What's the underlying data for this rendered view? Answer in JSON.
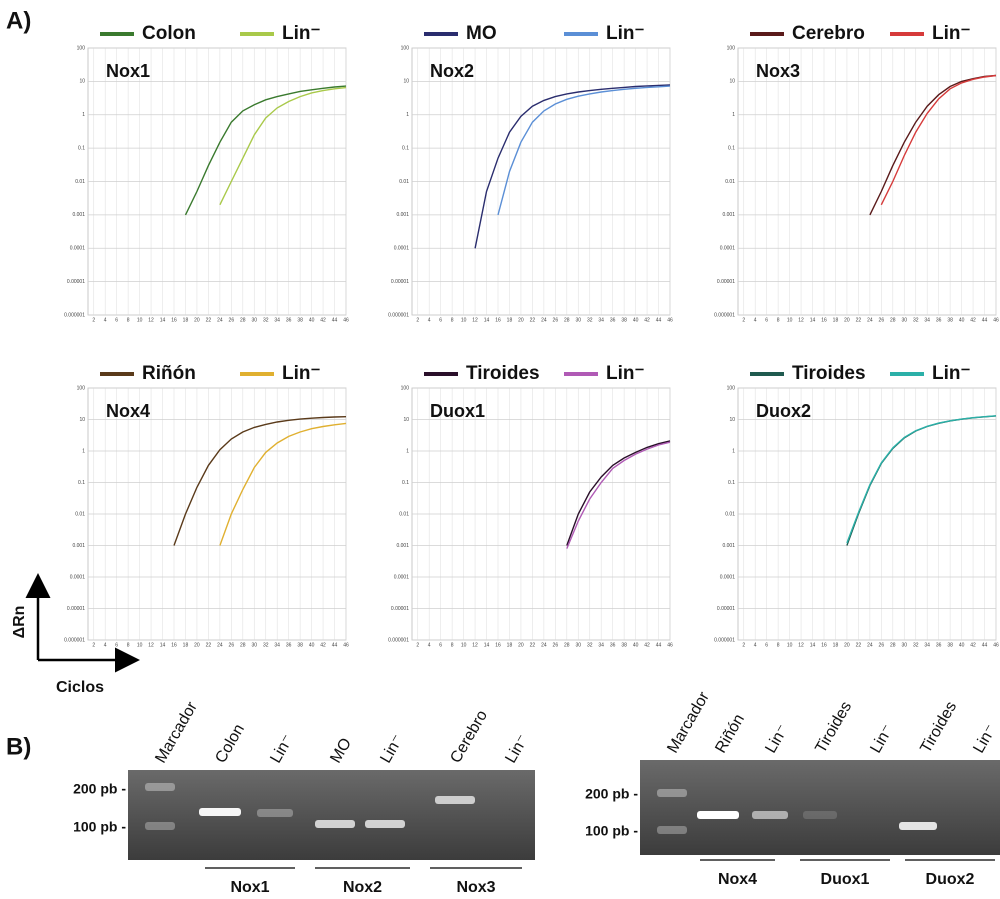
{
  "figure": {
    "panel_a": "A)",
    "panel_b": "B)",
    "y_axis": "ΔRn",
    "x_axis": "Ciclos"
  },
  "chart_data": [
    {
      "type": "line",
      "title": "Nox1",
      "yscale": "log",
      "grid": true,
      "x": [
        2,
        4,
        6,
        8,
        10,
        12,
        14,
        16,
        18,
        20,
        22,
        24,
        26,
        28,
        30,
        32,
        34,
        36,
        38,
        40,
        42,
        44,
        46
      ],
      "xlim": [
        1,
        46
      ],
      "xticks": [
        2,
        4,
        6,
        8,
        10,
        12,
        14,
        16,
        18,
        20,
        22,
        24,
        26,
        28,
        30,
        32,
        34,
        36,
        38,
        40,
        42,
        44,
        46
      ],
      "ylim": [
        1e-06,
        100
      ],
      "yticks": [
        1e-06,
        1e-05,
        0.0001,
        0.001,
        0.01,
        0.1,
        1,
        10,
        100
      ],
      "series": [
        {
          "name": "Colon",
          "color": "#3a7a2e",
          "values": [
            null,
            null,
            null,
            null,
            null,
            null,
            null,
            null,
            0.001,
            0.005,
            0.03,
            0.15,
            0.6,
            1.3,
            2,
            2.8,
            3.5,
            4.2,
            5,
            5.6,
            6.2,
            6.8,
            7.2
          ]
        },
        {
          "name": "Lin⁻",
          "color": "#a9c94a",
          "values": [
            null,
            null,
            null,
            null,
            null,
            null,
            null,
            null,
            null,
            null,
            null,
            0.002,
            0.01,
            0.05,
            0.25,
            0.8,
            1.6,
            2.5,
            3.5,
            4.5,
            5.3,
            6,
            6.5
          ]
        }
      ]
    },
    {
      "type": "line",
      "title": "Nox2",
      "yscale": "log",
      "grid": true,
      "x": [
        2,
        4,
        6,
        8,
        10,
        12,
        14,
        16,
        18,
        20,
        22,
        24,
        26,
        28,
        30,
        32,
        34,
        36,
        38,
        40,
        42,
        44,
        46
      ],
      "xlim": [
        1,
        46
      ],
      "xticks": [
        2,
        4,
        6,
        8,
        10,
        12,
        14,
        16,
        18,
        20,
        22,
        24,
        26,
        28,
        30,
        32,
        34,
        36,
        38,
        40,
        42,
        44,
        46
      ],
      "ylim": [
        1e-06,
        100
      ],
      "yticks": [
        1e-06,
        1e-05,
        0.0001,
        0.001,
        0.01,
        0.1,
        1,
        10,
        100
      ],
      "series": [
        {
          "name": "MO",
          "color": "#2a2d6e",
          "values": [
            null,
            null,
            null,
            null,
            null,
            0.0001,
            0.005,
            0.05,
            0.3,
            0.9,
            1.8,
            2.7,
            3.5,
            4.2,
            4.8,
            5.3,
            5.8,
            6.2,
            6.6,
            7,
            7.3,
            7.6,
            7.8
          ]
        },
        {
          "name": "Lin⁻",
          "color": "#5b8fd6",
          "values": [
            null,
            null,
            null,
            null,
            null,
            null,
            null,
            0.001,
            0.02,
            0.15,
            0.6,
            1.3,
            2.1,
            2.9,
            3.6,
            4.2,
            4.8,
            5.3,
            5.8,
            6.2,
            6.6,
            6.9,
            7.2
          ]
        }
      ]
    },
    {
      "type": "line",
      "title": "Nox3",
      "yscale": "log",
      "grid": true,
      "x": [
        2,
        4,
        6,
        8,
        10,
        12,
        14,
        16,
        18,
        20,
        22,
        24,
        26,
        28,
        30,
        32,
        34,
        36,
        38,
        40,
        42,
        44,
        46
      ],
      "xlim": [
        1,
        46
      ],
      "xticks": [
        2,
        4,
        6,
        8,
        10,
        12,
        14,
        16,
        18,
        20,
        22,
        24,
        26,
        28,
        30,
        32,
        34,
        36,
        38,
        40,
        42,
        44,
        46
      ],
      "ylim": [
        1e-06,
        100
      ],
      "yticks": [
        1e-06,
        1e-05,
        0.0001,
        0.001,
        0.01,
        0.1,
        1,
        10,
        100
      ],
      "series": [
        {
          "name": "Cerebro",
          "color": "#5a1a1a",
          "values": [
            null,
            null,
            null,
            null,
            null,
            null,
            null,
            null,
            null,
            null,
            null,
            0.001,
            0.005,
            0.03,
            0.15,
            0.6,
            1.8,
            4,
            7,
            10,
            12,
            14,
            15
          ]
        },
        {
          "name": "Lin⁻",
          "color": "#d63a3a",
          "values": [
            null,
            null,
            null,
            null,
            null,
            null,
            null,
            null,
            null,
            null,
            null,
            null,
            0.002,
            0.01,
            0.06,
            0.3,
            1.1,
            3,
            6,
            9,
            11.5,
            13.5,
            15
          ]
        }
      ]
    },
    {
      "type": "line",
      "title": "Nox4",
      "yscale": "log",
      "grid": true,
      "x": [
        2,
        4,
        6,
        8,
        10,
        12,
        14,
        16,
        18,
        20,
        22,
        24,
        26,
        28,
        30,
        32,
        34,
        36,
        38,
        40,
        42,
        44,
        46
      ],
      "xlim": [
        1,
        46
      ],
      "xticks": [
        2,
        4,
        6,
        8,
        10,
        12,
        14,
        16,
        18,
        20,
        22,
        24,
        26,
        28,
        30,
        32,
        34,
        36,
        38,
        40,
        42,
        44,
        46
      ],
      "ylim": [
        1e-06,
        100
      ],
      "yticks": [
        1e-06,
        1e-05,
        0.0001,
        0.001,
        0.01,
        0.1,
        1,
        10,
        100
      ],
      "series": [
        {
          "name": "Riñón",
          "color": "#5a3a1a",
          "values": [
            null,
            null,
            null,
            null,
            null,
            null,
            null,
            0.001,
            0.01,
            0.07,
            0.35,
            1.1,
            2.4,
            4,
            5.6,
            7,
            8.3,
            9.4,
            10.3,
            11,
            11.6,
            12,
            12.3
          ]
        },
        {
          "name": "Lin⁻",
          "color": "#e0b030",
          "values": [
            null,
            null,
            null,
            null,
            null,
            null,
            null,
            null,
            null,
            null,
            null,
            0.001,
            0.01,
            0.06,
            0.3,
            0.9,
            1.8,
            2.9,
            4,
            5.1,
            6,
            6.8,
            7.5
          ]
        }
      ]
    },
    {
      "type": "line",
      "title": "Duox1",
      "yscale": "log",
      "grid": true,
      "x": [
        2,
        4,
        6,
        8,
        10,
        12,
        14,
        16,
        18,
        20,
        22,
        24,
        26,
        28,
        30,
        32,
        34,
        36,
        38,
        40,
        42,
        44,
        46
      ],
      "xlim": [
        1,
        46
      ],
      "xticks": [
        2,
        4,
        6,
        8,
        10,
        12,
        14,
        16,
        18,
        20,
        22,
        24,
        26,
        28,
        30,
        32,
        34,
        36,
        38,
        40,
        42,
        44,
        46
      ],
      "ylim": [
        1e-06,
        100
      ],
      "yticks": [
        1e-06,
        1e-05,
        0.0001,
        0.001,
        0.01,
        0.1,
        1,
        10,
        100
      ],
      "series": [
        {
          "name": "Tiroides",
          "color": "#2a0f2a",
          "values": [
            null,
            null,
            null,
            null,
            null,
            null,
            null,
            null,
            null,
            null,
            null,
            null,
            null,
            0.001,
            0.01,
            0.05,
            0.15,
            0.35,
            0.6,
            0.9,
            1.3,
            1.7,
            2.1
          ]
        },
        {
          "name": "Lin⁻",
          "color": "#b05ab5",
          "values": [
            null,
            null,
            null,
            null,
            null,
            null,
            null,
            null,
            null,
            null,
            null,
            null,
            null,
            0.0008,
            0.006,
            0.03,
            0.1,
            0.28,
            0.5,
            0.8,
            1.15,
            1.55,
            1.9
          ]
        }
      ]
    },
    {
      "type": "line",
      "title": "Duox2",
      "yscale": "log",
      "grid": true,
      "x": [
        2,
        4,
        6,
        8,
        10,
        12,
        14,
        16,
        18,
        20,
        22,
        24,
        26,
        28,
        30,
        32,
        34,
        36,
        38,
        40,
        42,
        44,
        46
      ],
      "xlim": [
        1,
        46
      ],
      "xticks": [
        2,
        4,
        6,
        8,
        10,
        12,
        14,
        16,
        18,
        20,
        22,
        24,
        26,
        28,
        30,
        32,
        34,
        36,
        38,
        40,
        42,
        44,
        46
      ],
      "ylim": [
        1e-06,
        100
      ],
      "yticks": [
        1e-06,
        1e-05,
        0.0001,
        0.001,
        0.01,
        0.1,
        1,
        10,
        100
      ],
      "series": [
        {
          "name": "Tiroides",
          "color": "#1f5a4f",
          "values": [
            null,
            null,
            null,
            null,
            null,
            null,
            null,
            null,
            null,
            0.001,
            0.01,
            0.08,
            0.4,
            1.2,
            2.6,
            4.3,
            6,
            7.6,
            9,
            10.2,
            11.3,
            12.2,
            13
          ]
        },
        {
          "name": "Lin⁻",
          "color": "#2bb0a8",
          "values": [
            null,
            null,
            null,
            null,
            null,
            null,
            null,
            null,
            null,
            0.0012,
            0.011,
            0.085,
            0.42,
            1.25,
            2.7,
            4.4,
            6.1,
            7.7,
            9.1,
            10.3,
            11.4,
            12.3,
            13.1
          ]
        }
      ]
    }
  ],
  "gels": [
    {
      "lanes": [
        "Marcador",
        "Colon",
        "Lin⁻",
        "MO",
        "Lin⁻",
        "Cerebro",
        "Lin⁻"
      ],
      "markers": [
        "200 pb -",
        "100 pb -"
      ],
      "groups": [
        "Nox1",
        "Nox2",
        "Nox3"
      ]
    },
    {
      "lanes": [
        "Marcador",
        "Riñón",
        "Lin⁻",
        "Tiroides",
        "Lin⁻",
        "Tiroides",
        "Lin⁻"
      ],
      "markers": [
        "200 pb -",
        "100 pb -"
      ],
      "groups": [
        "Nox4",
        "Duox1",
        "Duox2"
      ]
    }
  ]
}
